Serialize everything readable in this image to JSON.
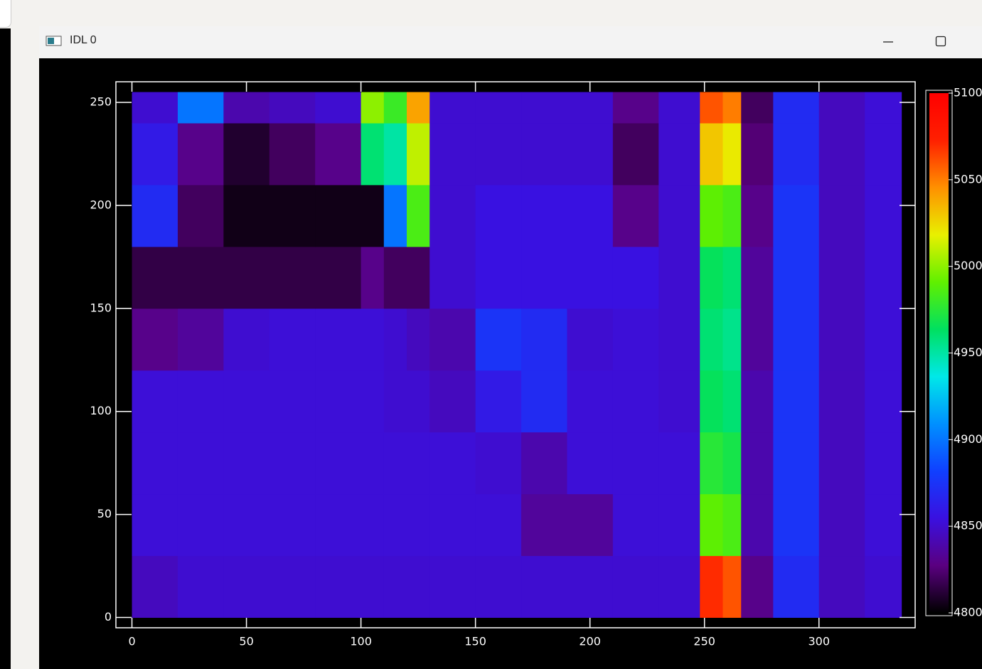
{
  "window": {
    "title": "IDL 0"
  },
  "chart_data": {
    "type": "heatmap",
    "x_edges": [
      0,
      20,
      40,
      60,
      80,
      100,
      110,
      120,
      130,
      150,
      170,
      190,
      210,
      230,
      248,
      258,
      266,
      280,
      300,
      320,
      336
    ],
    "y_edges": [
      0,
      30,
      60,
      90,
      120,
      150,
      180,
      210,
      240,
      255
    ],
    "values": [
      [
        4845,
        4850,
        4850,
        4850,
        4850,
        4850,
        4850,
        4850,
        4850,
        4850,
        4850,
        4850,
        4850,
        4850,
        5070,
        5060,
        4830,
        4870,
        4845,
        4850
      ],
      [
        4852,
        4852,
        4852,
        4852,
        4852,
        4852,
        4852,
        4852,
        4852,
        4852,
        4835,
        4835,
        4852,
        4852,
        4990,
        4985,
        4840,
        4875,
        4845,
        4852
      ],
      [
        4852,
        4852,
        4852,
        4852,
        4852,
        4852,
        4852,
        4852,
        4852,
        4850,
        4840,
        4852,
        4852,
        4852,
        4975,
        4970,
        4840,
        4875,
        4845,
        4852
      ],
      [
        4852,
        4852,
        4852,
        4852,
        4852,
        4852,
        4850,
        4850,
        4845,
        4860,
        4870,
        4852,
        4852,
        4850,
        4965,
        4960,
        4840,
        4875,
        4845,
        4852
      ],
      [
        4830,
        4835,
        4850,
        4852,
        4852,
        4852,
        4850,
        4845,
        4840,
        4875,
        4870,
        4850,
        4852,
        4850,
        4960,
        4955,
        4835,
        4875,
        4845,
        4852
      ],
      [
        4815,
        4815,
        4815,
        4815,
        4815,
        4830,
        4820,
        4820,
        4850,
        4855,
        4855,
        4855,
        4855,
        4850,
        4965,
        4960,
        4835,
        4875,
        4845,
        4852
      ],
      [
        4870,
        4820,
        4805,
        4805,
        4805,
        4805,
        4900,
        4985,
        4850,
        4855,
        4855,
        4855,
        4830,
        4850,
        4990,
        4985,
        4830,
        4875,
        4845,
        4852
      ],
      [
        4860,
        4830,
        4810,
        4820,
        4830,
        4960,
        4950,
        5010,
        4850,
        4850,
        4850,
        4850,
        4820,
        4850,
        5030,
        5020,
        4825,
        4870,
        4845,
        4852
      ],
      [
        4850,
        4900,
        4840,
        4845,
        4850,
        5000,
        4980,
        5040,
        4850,
        4850,
        4850,
        4850,
        4830,
        4850,
        5060,
        5050,
        4820,
        4870,
        4845,
        4852
      ]
    ],
    "xlim": [
      -7,
      342
    ],
    "ylim": [
      -5,
      260
    ],
    "xticks": [
      0,
      50,
      100,
      150,
      200,
      250,
      300
    ],
    "yticks": [
      0,
      50,
      100,
      150,
      200,
      250
    ],
    "colorbar": {
      "lim": [
        4800,
        5100
      ],
      "ticks": [
        4800,
        4850,
        4900,
        4950,
        5000,
        5050,
        5100
      ]
    },
    "colormap": [
      "#000000",
      "#5a0080",
      "#3a10e0",
      "#1040ff",
      "#0090ff",
      "#00e8e8",
      "#00e060",
      "#60f000",
      "#e8f000",
      "#ff9000",
      "#ff2000",
      "#ff0000"
    ]
  }
}
